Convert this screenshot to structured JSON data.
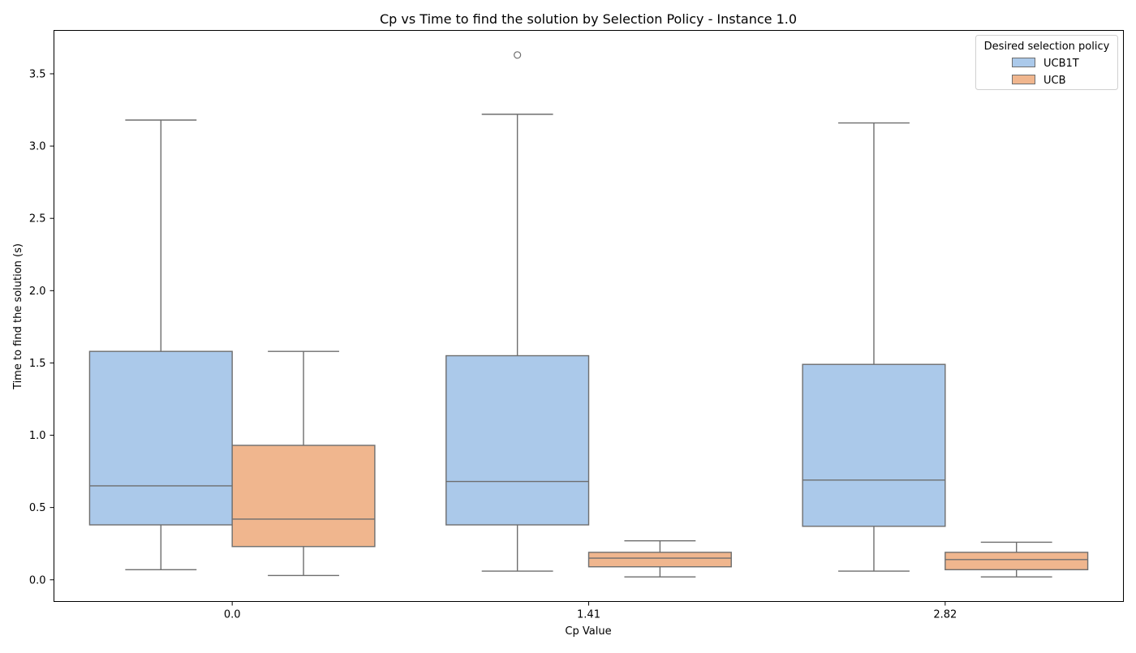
{
  "chart_data": {
    "type": "boxplot",
    "title": "Cp vs Time to find the solution by Selection Policy - Instance 1.0",
    "xlabel": "Cp Value",
    "ylabel": "Time to find the solution (s)",
    "categories": [
      "0.0",
      "1.41",
      "2.82"
    ],
    "ylim": [
      -0.15,
      3.8
    ],
    "yticks": [
      0.0,
      0.5,
      1.0,
      1.5,
      2.0,
      2.5,
      3.0,
      3.5
    ],
    "ytick_labels": [
      "0.0",
      "0.5",
      "1.0",
      "1.5",
      "2.0",
      "2.5",
      "3.0",
      "3.5"
    ],
    "grid": false,
    "legend": {
      "title": "Desired selection policy",
      "placement": "top-right"
    },
    "series": [
      {
        "name": "UCB1T",
        "color": "#abc9ea",
        "boxes": [
          {
            "whisker_low": 0.07,
            "q1": 0.38,
            "median": 0.65,
            "q3": 1.58,
            "whisker_high": 3.18,
            "outliers": []
          },
          {
            "whisker_low": 0.06,
            "q1": 0.38,
            "median": 0.68,
            "q3": 1.55,
            "whisker_high": 3.22,
            "outliers": [
              3.63
            ]
          },
          {
            "whisker_low": 0.06,
            "q1": 0.37,
            "median": 0.69,
            "q3": 1.49,
            "whisker_high": 3.16,
            "outliers": []
          }
        ]
      },
      {
        "name": "UCB",
        "color": "#f0b68e",
        "boxes": [
          {
            "whisker_low": 0.03,
            "q1": 0.23,
            "median": 0.42,
            "q3": 0.93,
            "whisker_high": 1.58,
            "outliers": []
          },
          {
            "whisker_low": 0.02,
            "q1": 0.09,
            "median": 0.15,
            "q3": 0.19,
            "whisker_high": 0.27,
            "outliers": []
          },
          {
            "whisker_low": 0.02,
            "q1": 0.07,
            "median": 0.14,
            "q3": 0.19,
            "whisker_high": 0.26,
            "outliers": []
          }
        ]
      }
    ],
    "line_color": "#6e6e6e"
  }
}
